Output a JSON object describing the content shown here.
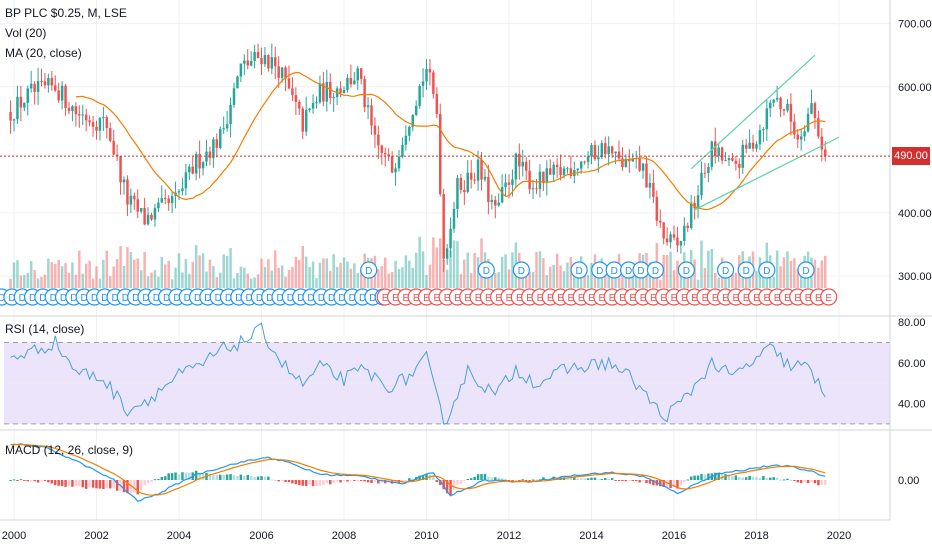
{
  "header": {
    "symbol_line": "BP PLC $0.25, M, LSE",
    "volume_line": "Vol (20)",
    "ma_line": "MA (20, close)"
  },
  "rsi_panel": {
    "title": "RSI (14, close)"
  },
  "macd_panel": {
    "title": "MACD (12, 26, close, 9)"
  },
  "last_price": {
    "label": "490.00",
    "value": 490
  },
  "colors": {
    "up": "#26a69a",
    "down": "#ef5350",
    "ma": "#f57c00",
    "rsi": "#4a9fd8",
    "rsi_band": "#ece4fb",
    "macd": "#2196f3",
    "signal": "#f57c00",
    "channel": "#5ad2a7",
    "price_line": "#d32f2f"
  },
  "chart_data": [
    {
      "type": "candlestick",
      "title": "BP PLC $0.25, M, LSE",
      "interval": "monthly",
      "y_ticks": [
        700,
        600,
        400,
        300
      ],
      "y_tick_labels": [
        "700.00",
        "600.00",
        "400.00",
        "300.00"
      ],
      "ylim": [
        262,
        728
      ],
      "last_close": 490,
      "x_tick_labels": [
        "2000",
        "2002",
        "2004",
        "2006",
        "2008",
        "2010",
        "2012",
        "2014",
        "2016",
        "2018",
        "2020"
      ],
      "approx_close_anchors": [
        [
          "1999-12",
          560
        ],
        [
          "2000-06",
          590
        ],
        [
          "2001-01",
          600
        ],
        [
          "2001-07",
          560
        ],
        [
          "2002-04",
          540
        ],
        [
          "2002-10",
          420
        ],
        [
          "2003-03",
          390
        ],
        [
          "2003-12",
          420
        ],
        [
          "2004-06",
          480
        ],
        [
          "2005-01",
          520
        ],
        [
          "2005-07",
          630
        ],
        [
          "2006-01",
          650
        ],
        [
          "2006-06",
          630
        ],
        [
          "2007-01",
          540
        ],
        [
          "2007-06",
          590
        ],
        [
          "2007-12",
          600
        ],
        [
          "2008-05",
          620
        ],
        [
          "2008-10",
          510
        ],
        [
          "2009-03",
          470
        ],
        [
          "2009-09",
          570
        ],
        [
          "2010-01",
          630
        ],
        [
          "2010-04",
          560
        ],
        [
          "2010-06",
          330
        ],
        [
          "2010-10",
          440
        ],
        [
          "2011-04",
          470
        ],
        [
          "2011-09",
          400
        ],
        [
          "2012-03",
          480
        ],
        [
          "2012-08",
          445
        ],
        [
          "2013-06",
          470
        ],
        [
          "2014-05",
          505
        ],
        [
          "2014-09",
          480
        ],
        [
          "2015-04",
          470
        ],
        [
          "2015-10",
          360
        ],
        [
          "2016-02",
          345
        ],
        [
          "2016-06",
          400
        ],
        [
          "2016-12",
          500
        ],
        [
          "2017-06",
          470
        ],
        [
          "2018-01",
          520
        ],
        [
          "2018-06",
          585
        ],
        [
          "2018-10",
          560
        ],
        [
          "2019-01",
          520
        ],
        [
          "2019-05",
          570
        ],
        [
          "2019-08",
          510
        ],
        [
          "2019-09",
          490
        ]
      ],
      "channel": {
        "upper": [
          [
            "2016-06",
            470
          ],
          [
            "2019-06",
            650
          ]
        ],
        "lower": [
          [
            "2016-07",
            405
          ],
          [
            "2020-01",
            520
          ]
        ]
      },
      "dividend_marker": "D",
      "earnings_marker": "E"
    },
    {
      "type": "line",
      "title": "RSI (14, close)",
      "y_ticks": [
        80,
        60,
        40
      ],
      "y_tick_labels": [
        "80.00",
        "60.00",
        "40.00"
      ],
      "band": [
        30,
        70
      ],
      "ylim": [
        28,
        82
      ],
      "approx_anchors": [
        [
          "2000-01",
          63
        ],
        [
          "2000-07",
          66
        ],
        [
          "2001-01",
          70
        ],
        [
          "2001-07",
          56
        ],
        [
          "2002-03",
          52
        ],
        [
          "2002-10",
          37
        ],
        [
          "2003-04",
          42
        ],
        [
          "2004-01",
          54
        ],
        [
          "2004-07",
          58
        ],
        [
          "2005-01",
          66
        ],
        [
          "2005-07",
          70
        ],
        [
          "2006-01",
          76
        ],
        [
          "2006-07",
          60
        ],
        [
          "2007-01",
          49
        ],
        [
          "2007-06",
          58
        ],
        [
          "2008-01",
          52
        ],
        [
          "2008-07",
          57
        ],
        [
          "2009-01",
          48
        ],
        [
          "2009-07",
          52
        ],
        [
          "2010-01",
          62
        ],
        [
          "2010-06",
          30
        ],
        [
          "2011-01",
          56
        ],
        [
          "2011-09",
          44
        ],
        [
          "2012-03",
          57
        ],
        [
          "2012-09",
          50
        ],
        [
          "2013-06",
          57
        ],
        [
          "2014-06",
          60
        ],
        [
          "2015-01",
          52
        ],
        [
          "2015-10",
          33
        ],
        [
          "2016-04",
          42
        ],
        [
          "2016-12",
          60
        ],
        [
          "2017-06",
          53
        ],
        [
          "2018-05",
          67
        ],
        [
          "2018-11",
          58
        ],
        [
          "2019-03",
          59
        ],
        [
          "2019-09",
          45
        ]
      ]
    },
    {
      "type": "line",
      "title": "MACD (12, 26, close, 9)",
      "y_ticks": [
        0
      ],
      "y_tick_labels": [
        "0.00"
      ],
      "ylim": [
        -1,
        1
      ],
      "approx_macd_anchors": [
        [
          "2000-01",
          0.95
        ],
        [
          "2000-10",
          0.85
        ],
        [
          "2001-06",
          0.55
        ],
        [
          "2002-06",
          0.0
        ],
        [
          "2003-01",
          -0.55
        ],
        [
          "2003-06",
          -0.4
        ],
        [
          "2004-06",
          0.15
        ],
        [
          "2005-06",
          0.45
        ],
        [
          "2006-03",
          0.6
        ],
        [
          "2006-09",
          0.45
        ],
        [
          "2007-06",
          0.15
        ],
        [
          "2008-06",
          0.1
        ],
        [
          "2009-06",
          -0.1
        ],
        [
          "2010-03",
          0.2
        ],
        [
          "2010-08",
          -0.4
        ],
        [
          "2011-06",
          0.0
        ],
        [
          "2012-06",
          -0.05
        ],
        [
          "2013-06",
          0.1
        ],
        [
          "2014-06",
          0.2
        ],
        [
          "2015-04",
          0.1
        ],
        [
          "2016-02",
          -0.35
        ],
        [
          "2017-01",
          0.15
        ],
        [
          "2018-03",
          0.35
        ],
        [
          "2018-09",
          0.38
        ],
        [
          "2019-04",
          0.25
        ],
        [
          "2019-09",
          0.1
        ]
      ]
    }
  ]
}
